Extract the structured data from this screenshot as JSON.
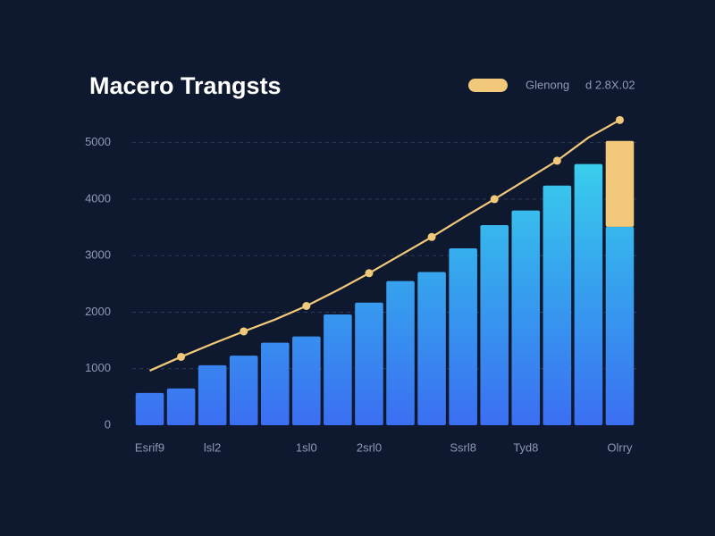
{
  "chart_data": {
    "type": "bar",
    "title": "Macero Trangsts",
    "annotation": "d 2.8X.02",
    "categories": [
      "Esrif9",
      null,
      "lsl2",
      null,
      null,
      "1sl0",
      null,
      "2srl0",
      null,
      null,
      "Ssrl8",
      null,
      "Tyd8",
      null,
      null,
      "Olrry"
    ],
    "ylim": [
      0,
      5500
    ],
    "yticks": [
      0,
      1000,
      2000,
      3000,
      4000,
      5000
    ],
    "grid": true,
    "stacked": true,
    "series": [
      {
        "type": "bar",
        "color": "#3b6ff2",
        "values": [
          570,
          650,
          1060,
          1230,
          1460,
          1570,
          1960,
          2170,
          2550,
          2710,
          3130,
          3540,
          3800,
          4240,
          4620,
          3510
        ]
      },
      {
        "type": "bar",
        "color": "#f2c97a",
        "values": [
          null,
          null,
          null,
          null,
          null,
          null,
          null,
          null,
          null,
          null,
          null,
          null,
          null,
          null,
          null,
          1520
        ]
      },
      {
        "type": "line",
        "name": "Glenong",
        "color": "#f2c97a",
        "values": [
          965,
          1210,
          1440,
          1660,
          1870,
          2110,
          2390,
          2690,
          3010,
          3330,
          3670,
          4000,
          4340,
          4680,
          5090,
          5400
        ]
      }
    ]
  }
}
